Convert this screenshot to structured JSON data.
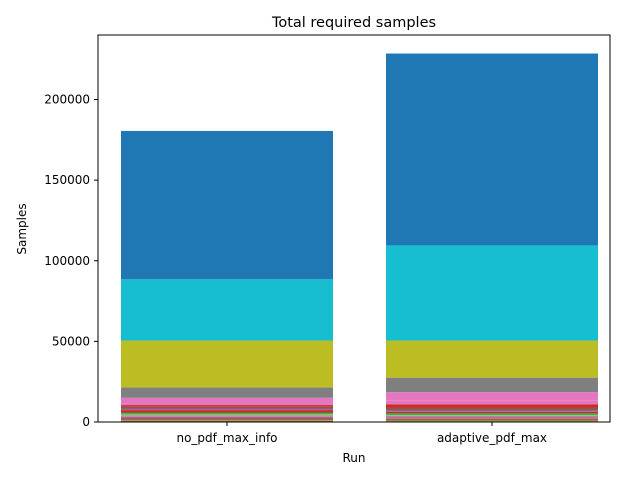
{
  "chart_data": {
    "type": "bar",
    "stacked": true,
    "title": "Total required samples",
    "xlabel": "Run",
    "ylabel": "Samples",
    "categories": [
      "no_pdf_max_info",
      "adaptive_pdf_max"
    ],
    "ylim": [
      0,
      240000
    ],
    "yticks": [
      0,
      50000,
      100000,
      150000,
      200000
    ],
    "ytick_labels": [
      "0",
      "50000",
      "100000",
      "150000",
      "200000"
    ],
    "grid": false,
    "legend": "none",
    "series": [
      {
        "color": "#1f77b4",
        "values": [
          600,
          500
        ]
      },
      {
        "color": "#ff7f0e",
        "values": [
          500,
          400
        ]
      },
      {
        "color": "#2ca02c",
        "values": [
          500,
          500
        ]
      },
      {
        "color": "#d62728",
        "values": [
          600,
          500
        ]
      },
      {
        "color": "#9467bd",
        "values": [
          500,
          400
        ]
      },
      {
        "color": "#8c564b",
        "values": [
          600,
          600
        ]
      },
      {
        "color": "#e377c2",
        "values": [
          500,
          500
        ]
      },
      {
        "color": "#7f7f7f",
        "values": [
          400,
          300
        ]
      },
      {
        "color": "#bcbd22",
        "values": [
          500,
          500
        ]
      },
      {
        "color": "#17becf",
        "values": [
          400,
          400
        ]
      },
      {
        "color": "#2ca02c",
        "values": [
          800,
          800
        ]
      },
      {
        "color": "#d62728",
        "values": [
          1500,
          1000
        ]
      },
      {
        "color": "#9467bd",
        "values": [
          700,
          700
        ]
      },
      {
        "color": "#8c564b",
        "values": [
          1400,
          1900
        ]
      },
      {
        "color": "#d62728",
        "values": [
          1000,
          2000
        ]
      },
      {
        "color": "#e377c2",
        "values": [
          1000,
          2500
        ]
      },
      {
        "color": "#e377c2",
        "values": [
          3500,
          5000
        ]
      },
      {
        "color": "#7f7f7f",
        "values": [
          6500,
          9000
        ]
      },
      {
        "color": "#bcbd22",
        "values": [
          29000,
          23000
        ]
      },
      {
        "color": "#17becf",
        "values": [
          38000,
          59000
        ]
      },
      {
        "color": "#1f77b4",
        "values": [
          92000,
          119000
        ]
      }
    ]
  }
}
